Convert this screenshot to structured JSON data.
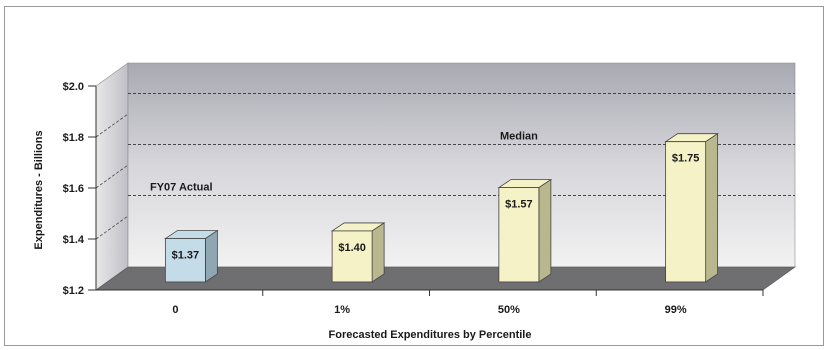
{
  "chart_data": {
    "type": "bar",
    "title": "",
    "xlabel": "Forecasted Expenditures by Percentile",
    "ylabel": "Expenditures - Billions",
    "categories": [
      "0",
      "1%",
      "50%",
      "99%"
    ],
    "values": [
      1.37,
      1.4,
      1.57,
      1.75
    ],
    "data_labels": [
      "$1.37",
      "$1.40",
      "$1.57",
      "$1.75"
    ],
    "ylim": [
      1.2,
      2.0
    ],
    "yticks": [
      1.2,
      1.4,
      1.6,
      1.8,
      2.0
    ],
    "ytick_labels": [
      "$1.2",
      "$1.4",
      "$1.6",
      "$1.8",
      "$2.0"
    ],
    "reference_lines": [
      {
        "label": "FY07 Actual",
        "value": 1.48
      },
      {
        "label": "Median",
        "value": 1.68
      },
      {
        "label": "",
        "value": 1.88
      }
    ],
    "bar_colors": {
      "first": "#c4dce8",
      "others": "#f4f2c6"
    },
    "grid": true,
    "legend": "none"
  }
}
